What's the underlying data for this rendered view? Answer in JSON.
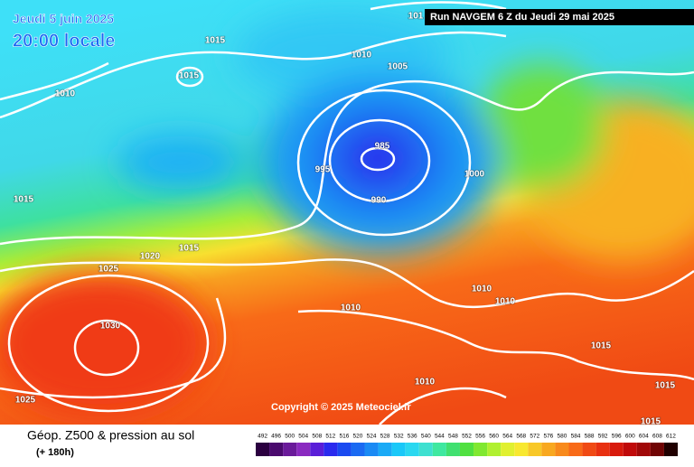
{
  "header": {
    "date": "Jeudi 5 juin 2025",
    "time": "20:00 locale",
    "run": "Run NAVGEM 6 Z du Jeudi 29 mai 2025"
  },
  "isobar_labels": [
    1015,
    1015,
    1010,
    1010,
    1005,
    101,
    985,
    995,
    990,
    1000,
    1015,
    1015,
    1020,
    1025,
    1030,
    1010,
    1010,
    1010,
    1015,
    1010,
    1015,
    1025,
    1015
  ],
  "copyright": "Copyright © 2025 Meteociel.fr",
  "legend": {
    "title": "Géop. Z500 & pression au sol",
    "subtitle": "(+ 180h)",
    "ticks": [
      492,
      496,
      500,
      504,
      508,
      512,
      516,
      520,
      524,
      528,
      532,
      536,
      540,
      544,
      548,
      552,
      556,
      560,
      564,
      568,
      572,
      576,
      580,
      584,
      588,
      592,
      596,
      600,
      604,
      608,
      612
    ],
    "colors": [
      "#2b0040",
      "#4a0a6e",
      "#6a1a9a",
      "#8a2ac0",
      "#5a1ed8",
      "#2a2aee",
      "#1a4af0",
      "#1a6af2",
      "#1a8af4",
      "#1aaaf6",
      "#1ac8f8",
      "#2ad8f0",
      "#3ee0d0",
      "#3ee8a0",
      "#40e070",
      "#50e040",
      "#80e830",
      "#b0f030",
      "#e0f030",
      "#f8e830",
      "#f8c828",
      "#f8a820",
      "#f88a1c",
      "#f86a18",
      "#f04a14",
      "#e83010",
      "#d81a0c",
      "#c00a0a",
      "#a00808",
      "#700404",
      "#200000"
    ]
  }
}
